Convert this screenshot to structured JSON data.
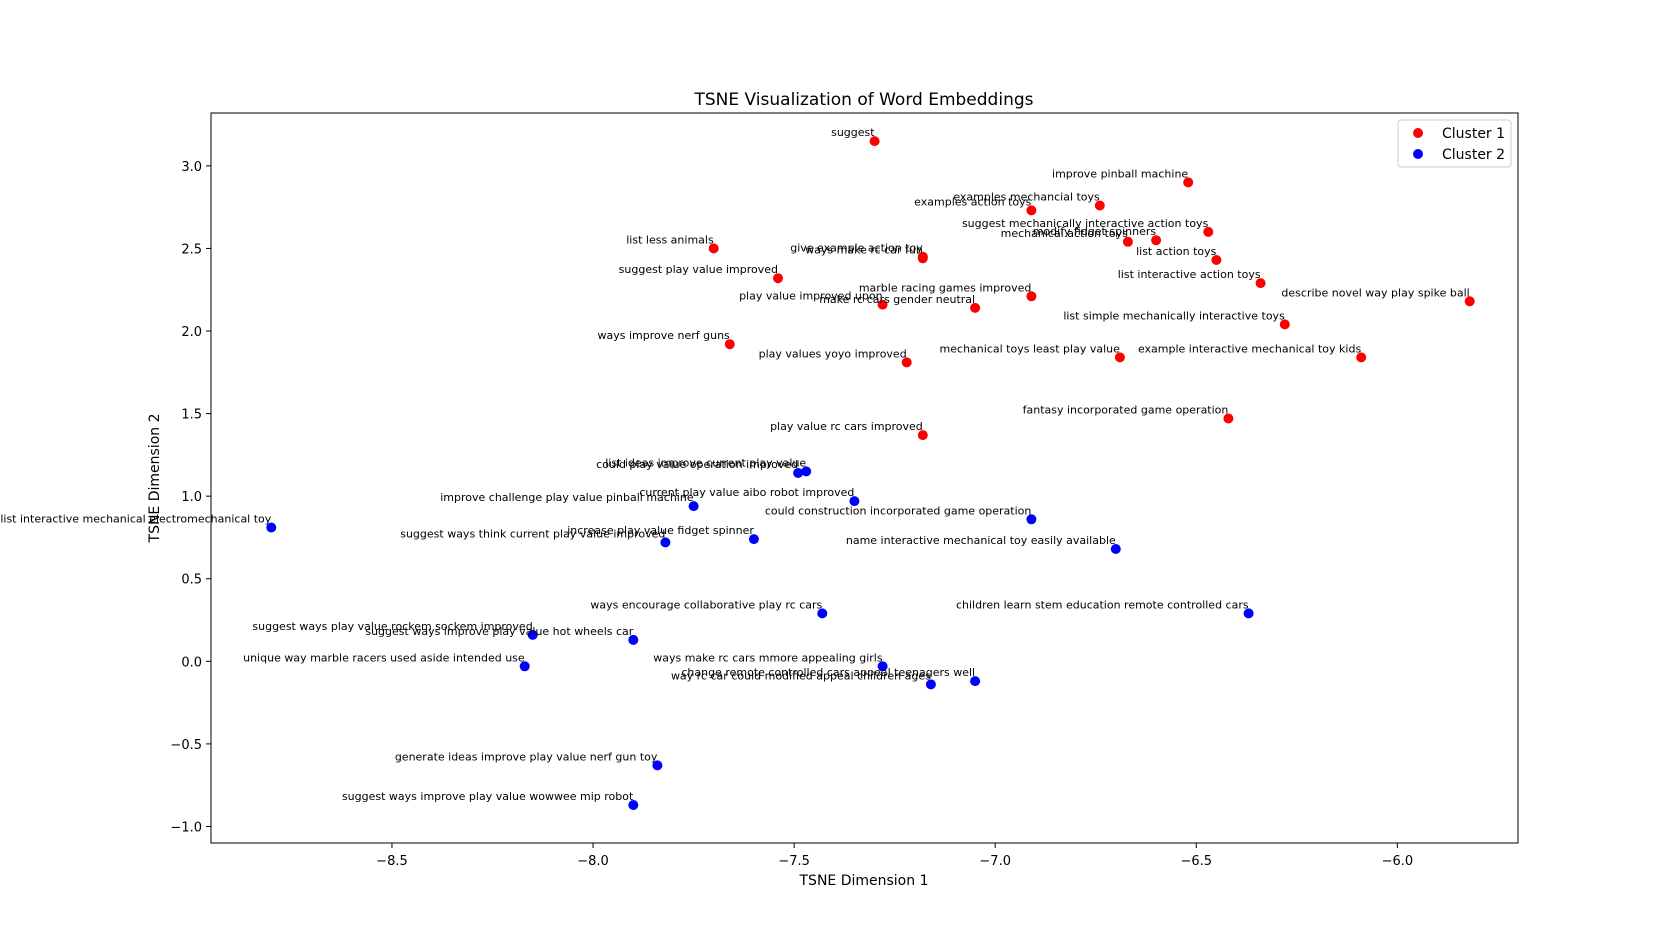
{
  "chart_data": {
    "type": "scatter",
    "title": "TSNE Visualization of Word Embeddings",
    "xlabel": "TSNE Dimension 1",
    "ylabel": "TSNE Dimension 2",
    "xlim": [
      -8.95,
      -5.7
    ],
    "ylim": [
      -1.1,
      3.32
    ],
    "xticks": [
      -8.5,
      -8.0,
      -7.5,
      -7.0,
      -6.5,
      -6.0
    ],
    "xtick_labels": [
      "−8.5",
      "−8.0",
      "−7.5",
      "−7.0",
      "−6.5",
      "−6.0"
    ],
    "yticks": [
      -1.0,
      -0.5,
      0.0,
      0.5,
      1.0,
      1.5,
      2.0,
      2.5,
      3.0
    ],
    "ytick_labels": [
      "−1.0",
      "−0.5",
      "0.0",
      "0.5",
      "1.0",
      "1.5",
      "2.0",
      "2.5",
      "3.0"
    ],
    "grid": false,
    "legend_position": "top-right",
    "colors": {
      "Cluster 1": "#ff0000",
      "Cluster 2": "#0000ff"
    },
    "series": [
      {
        "name": "Cluster 1",
        "color": "#ff0000",
        "points": [
          {
            "x": -7.3,
            "y": 3.15,
            "label": "suggest"
          },
          {
            "x": -6.52,
            "y": 2.9,
            "label": "improve pinball machine"
          },
          {
            "x": -6.74,
            "y": 2.76,
            "label": "examples mechancial toys"
          },
          {
            "x": -6.91,
            "y": 2.73,
            "label": "examples action toys"
          },
          {
            "x": -6.47,
            "y": 2.6,
            "label": "suggest mechanically interactive action toys"
          },
          {
            "x": -6.6,
            "y": 2.55,
            "label": "modify fidget spinners"
          },
          {
            "x": -6.67,
            "y": 2.54,
            "label": "mechanical action toys"
          },
          {
            "x": -6.45,
            "y": 2.43,
            "label": "list action toys"
          },
          {
            "x": -7.7,
            "y": 2.5,
            "label": "list less animals"
          },
          {
            "x": -7.18,
            "y": 2.45,
            "label": "give example action toy"
          },
          {
            "x": -7.18,
            "y": 2.44,
            "label": "ways make rc car fun"
          },
          {
            "x": -7.54,
            "y": 2.32,
            "label": "suggest play value improved"
          },
          {
            "x": -6.34,
            "y": 2.29,
            "label": "list interactive action toys"
          },
          {
            "x": -5.82,
            "y": 2.18,
            "label": "describe novel way play spike ball"
          },
          {
            "x": -6.91,
            "y": 2.21,
            "label": "marble racing games improved"
          },
          {
            "x": -7.28,
            "y": 2.16,
            "label": "play value improved upon"
          },
          {
            "x": -7.05,
            "y": 2.14,
            "label": "make rc cars gender neutral"
          },
          {
            "x": -6.28,
            "y": 2.04,
            "label": "list simple mechanically interactive toys"
          },
          {
            "x": -7.66,
            "y": 1.92,
            "label": "ways improve nerf guns"
          },
          {
            "x": -7.22,
            "y": 1.81,
            "label": "play values yoyo improved"
          },
          {
            "x": -6.69,
            "y": 1.84,
            "label": "mechanical toys least play value"
          },
          {
            "x": -6.09,
            "y": 1.84,
            "label": "example interactive mechanical toy kids"
          },
          {
            "x": -6.42,
            "y": 1.47,
            "label": "fantasy incorporated game operation"
          },
          {
            "x": -7.18,
            "y": 1.37,
            "label": "play value rc cars improved"
          }
        ]
      },
      {
        "name": "Cluster 2",
        "color": "#0000ff",
        "points": [
          {
            "x": -7.47,
            "y": 1.15,
            "label": "list ideas improve current play value"
          },
          {
            "x": -7.49,
            "y": 1.14,
            "label": "could play value operation improved"
          },
          {
            "x": -7.35,
            "y": 0.97,
            "label": "current play value aibo robot improved"
          },
          {
            "x": -7.75,
            "y": 0.94,
            "label": "improve challenge play value pinball machine"
          },
          {
            "x": -6.91,
            "y": 0.86,
            "label": "could construction incorporated game operation"
          },
          {
            "x": -8.8,
            "y": 0.81,
            "label": "list interactive mechanical electromechanical toy"
          },
          {
            "x": -7.6,
            "y": 0.74,
            "label": "increase play value fidget spinner"
          },
          {
            "x": -7.82,
            "y": 0.72,
            "label": "suggest ways think current play value improved"
          },
          {
            "x": -6.7,
            "y": 0.68,
            "label": "name interactive mechanical toy easily available"
          },
          {
            "x": -7.43,
            "y": 0.29,
            "label": "ways encourage collaborative play rc cars"
          },
          {
            "x": -6.37,
            "y": 0.29,
            "label": "children learn stem education remote controlled cars"
          },
          {
            "x": -8.15,
            "y": 0.16,
            "label": "suggest ways play value rockem sockem improved"
          },
          {
            "x": -7.9,
            "y": 0.13,
            "label": "suggest ways improve play value hot wheels car"
          },
          {
            "x": -8.17,
            "y": -0.03,
            "label": "unique way marble racers used aside intended use"
          },
          {
            "x": -7.28,
            "y": -0.03,
            "label": "ways make rc cars mmore appealing girls"
          },
          {
            "x": -7.05,
            "y": -0.12,
            "label": "change remote controlled cars appeal teenagers well"
          },
          {
            "x": -7.16,
            "y": -0.14,
            "label": "way rc car could modified appeal children ages"
          },
          {
            "x": -7.84,
            "y": -0.63,
            "label": "generate ideas improve play value nerf gun toy"
          },
          {
            "x": -7.9,
            "y": -0.87,
            "label": "suggest ways improve play value wowwee mip robot"
          }
        ]
      }
    ]
  }
}
